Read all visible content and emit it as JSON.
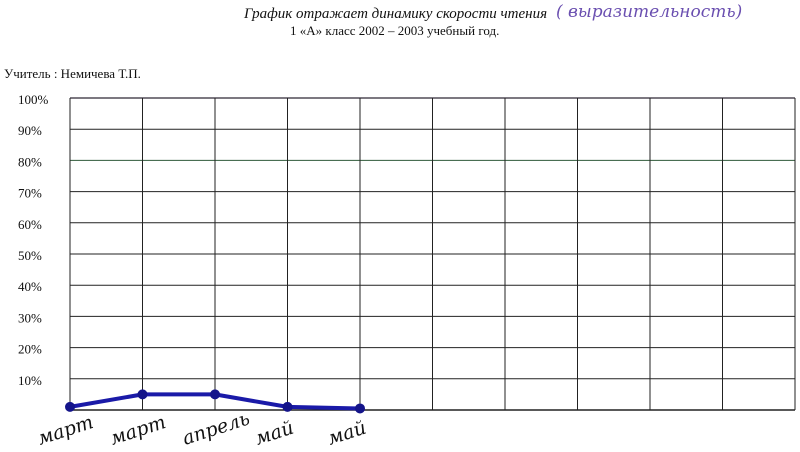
{
  "header": {
    "title": "График отражает динамику скорости чтения",
    "handwritten_note": "( выразительность)",
    "subtitle": "1 «А» класс 2002 – 2003 учебный год.",
    "teacher": "Учитель : Немичева Т.П."
  },
  "chart_data": {
    "type": "line",
    "title": "График отражает динамику скорости чтения",
    "subtitle": "1 «А» класс 2002 – 2003 учебный год.",
    "categories": [
      "март",
      "март",
      "апрель",
      "май",
      "май"
    ],
    "values": [
      1,
      5,
      5,
      1,
      0.5
    ],
    "ylim": [
      0,
      100
    ],
    "yticks": [
      "10%",
      "20%",
      "30%",
      "40%",
      "50%",
      "60%",
      "70%",
      "80%",
      "90%",
      "100%"
    ],
    "grid": true,
    "columns": 10,
    "line_color": "#1a1aa8"
  }
}
